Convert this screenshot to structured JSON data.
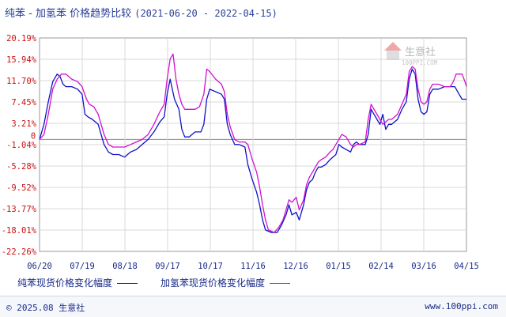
{
  "title": {
    "main": "纯苯 - 加氢苯 价格趋势比较",
    "dates": "(2021-06-20 - 2022-04-15)"
  },
  "watermark": {
    "name": "生意社",
    "url": "100PPI.COM"
  },
  "footer": {
    "copyright": "© 2025.08 生意社",
    "site": "www.100ppi.com"
  },
  "colors": {
    "series1": "#1010c8",
    "series2": "#d010d0",
    "ytick": "#cc1010",
    "xtick": "#1a2a88",
    "grid": "#d8d8d8",
    "zero": "#888888"
  },
  "chart_data": {
    "type": "line",
    "title": "纯苯 - 加氢苯 价格趋势比较",
    "xlabel": "",
    "ylabel": "",
    "ylim": [
      -22.26,
      20.19
    ],
    "yticks": [
      "20.19%",
      "15.94%",
      "11.70%",
      "7.45%",
      "3.21%",
      "-1.04%",
      "-5.28%",
      "-9.52%",
      "-13.77%",
      "-18.01%",
      "-22.26%"
    ],
    "xticks": [
      "06/20",
      "07/19",
      "08/18",
      "09/17",
      "10/17",
      "11/16",
      "12/16",
      "01/15",
      "02/14",
      "03/16",
      "04/15"
    ],
    "grid": true,
    "legend_position": "bottom",
    "series": [
      {
        "name": "纯苯现货价格变化幅度",
        "points": [
          [
            0,
            0.0
          ],
          [
            3,
            3.0
          ],
          [
            6,
            7.5
          ],
          [
            9,
            11.5
          ],
          [
            12,
            13.0
          ],
          [
            14,
            12.5
          ],
          [
            16,
            11.0
          ],
          [
            18,
            10.5
          ],
          [
            22,
            10.5
          ],
          [
            26,
            10.0
          ],
          [
            29,
            9.0
          ],
          [
            31,
            5.0
          ],
          [
            33,
            4.5
          ],
          [
            36,
            4.0
          ],
          [
            40,
            3.0
          ],
          [
            42,
            1.0
          ],
          [
            44,
            -1.0
          ],
          [
            47,
            -2.5
          ],
          [
            50,
            -3.0
          ],
          [
            54,
            -3.0
          ],
          [
            58,
            -3.5
          ],
          [
            62,
            -2.5
          ],
          [
            66,
            -2.0
          ],
          [
            70,
            -1.0
          ],
          [
            74,
            0.0
          ],
          [
            78,
            1.5
          ],
          [
            82,
            3.5
          ],
          [
            85,
            4.5
          ],
          [
            87,
            9.0
          ],
          [
            89,
            12.0
          ],
          [
            92,
            8.0
          ],
          [
            95,
            6.0
          ],
          [
            97,
            2.0
          ],
          [
            99,
            0.5
          ],
          [
            102,
            0.5
          ],
          [
            106,
            1.5
          ],
          [
            110,
            1.5
          ],
          [
            112,
            3.0
          ],
          [
            114,
            8.0
          ],
          [
            116,
            10.0
          ],
          [
            120,
            9.5
          ],
          [
            124,
            9.0
          ],
          [
            126,
            8.0
          ],
          [
            128,
            3.0
          ],
          [
            130,
            1.0
          ],
          [
            133,
            -1.0
          ],
          [
            136,
            -1.0
          ],
          [
            140,
            -1.5
          ],
          [
            142,
            -5.0
          ],
          [
            145,
            -8.0
          ],
          [
            148,
            -10.5
          ],
          [
            150,
            -13.0
          ],
          [
            152,
            -16.0
          ],
          [
            154,
            -18.0
          ],
          [
            158,
            -18.5
          ],
          [
            162,
            -18.5
          ],
          [
            165,
            -17.0
          ],
          [
            168,
            -15.0
          ],
          [
            170,
            -13.0
          ],
          [
            172,
            -15.0
          ],
          [
            175,
            -14.5
          ],
          [
            177,
            -16.0
          ],
          [
            180,
            -13.0
          ],
          [
            182,
            -10.0
          ],
          [
            184,
            -8.5
          ],
          [
            186,
            -8.0
          ],
          [
            188,
            -6.5
          ],
          [
            190,
            -5.5
          ],
          [
            192,
            -5.5
          ],
          [
            195,
            -5.0
          ],
          [
            198,
            -4.0
          ],
          [
            200,
            -3.5
          ],
          [
            202,
            -3.0
          ],
          [
            204,
            -1.0
          ],
          [
            206,
            -1.5
          ],
          [
            209,
            -2.0
          ],
          [
            212,
            -2.5
          ],
          [
            214,
            -1.0
          ],
          [
            216,
            -0.5
          ],
          [
            218,
            -1.0
          ],
          [
            222,
            -1.0
          ],
          [
            224,
            1.0
          ],
          [
            226,
            6.0
          ],
          [
            228,
            5.0
          ],
          [
            230,
            4.0
          ],
          [
            232,
            3.0
          ],
          [
            234,
            5.0
          ],
          [
            236,
            2.0
          ],
          [
            238,
            3.0
          ],
          [
            240,
            3.0
          ],
          [
            244,
            4.0
          ],
          [
            247,
            6.0
          ],
          [
            250,
            7.5
          ],
          [
            252,
            12.0
          ],
          [
            254,
            14.0
          ],
          [
            256,
            13.0
          ],
          [
            258,
            8.0
          ],
          [
            260,
            5.5
          ],
          [
            262,
            5.0
          ],
          [
            264,
            5.5
          ],
          [
            266,
            9.0
          ],
          [
            268,
            10.0
          ],
          [
            272,
            10.0
          ],
          [
            276,
            10.5
          ],
          [
            280,
            10.5
          ],
          [
            283,
            10.5
          ],
          [
            286,
            9.0
          ],
          [
            288,
            8.0
          ],
          [
            291,
            8.0
          ]
        ]
      },
      {
        "name": "加氢苯现货价格变化幅度",
        "points": [
          [
            0,
            0.0
          ],
          [
            3,
            1.0
          ],
          [
            6,
            5.0
          ],
          [
            9,
            10.0
          ],
          [
            12,
            12.0
          ],
          [
            15,
            13.0
          ],
          [
            18,
            13.0
          ],
          [
            22,
            12.0
          ],
          [
            26,
            11.5
          ],
          [
            29,
            10.5
          ],
          [
            32,
            8.0
          ],
          [
            34,
            7.0
          ],
          [
            37,
            6.5
          ],
          [
            40,
            5.0
          ],
          [
            42,
            3.0
          ],
          [
            44,
            1.0
          ],
          [
            47,
            -1.0
          ],
          [
            50,
            -1.5
          ],
          [
            54,
            -1.5
          ],
          [
            58,
            -1.5
          ],
          [
            62,
            -1.0
          ],
          [
            66,
            -0.5
          ],
          [
            70,
            0.0
          ],
          [
            74,
            1.0
          ],
          [
            78,
            3.0
          ],
          [
            82,
            5.5
          ],
          [
            85,
            7.0
          ],
          [
            87,
            12.0
          ],
          [
            89,
            16.0
          ],
          [
            91,
            17.0
          ],
          [
            93,
            12.0
          ],
          [
            95,
            9.0
          ],
          [
            97,
            7.0
          ],
          [
            99,
            6.0
          ],
          [
            102,
            6.0
          ],
          [
            106,
            6.0
          ],
          [
            109,
            6.5
          ],
          [
            112,
            9.0
          ],
          [
            114,
            14.0
          ],
          [
            116,
            13.5
          ],
          [
            120,
            12.0
          ],
          [
            124,
            11.0
          ],
          [
            126,
            9.5
          ],
          [
            128,
            5.0
          ],
          [
            130,
            2.5
          ],
          [
            133,
            0.0
          ],
          [
            136,
            -0.5
          ],
          [
            140,
            -0.5
          ],
          [
            142,
            -1.0
          ],
          [
            145,
            -4.0
          ],
          [
            148,
            -6.5
          ],
          [
            150,
            -9.5
          ],
          [
            152,
            -13.0
          ],
          [
            154,
            -16.0
          ],
          [
            156,
            -18.0
          ],
          [
            160,
            -18.5
          ],
          [
            163,
            -17.5
          ],
          [
            166,
            -16.0
          ],
          [
            168,
            -14.0
          ],
          [
            170,
            -12.0
          ],
          [
            172,
            -12.5
          ],
          [
            175,
            -11.5
          ],
          [
            177,
            -14.0
          ],
          [
            180,
            -12.0
          ],
          [
            182,
            -9.0
          ],
          [
            184,
            -7.5
          ],
          [
            186,
            -6.5
          ],
          [
            188,
            -5.5
          ],
          [
            190,
            -4.5
          ],
          [
            192,
            -4.0
          ],
          [
            195,
            -3.5
          ],
          [
            198,
            -2.5
          ],
          [
            200,
            -2.0
          ],
          [
            202,
            -1.0
          ],
          [
            204,
            0.0
          ],
          [
            206,
            1.0
          ],
          [
            209,
            0.5
          ],
          [
            212,
            -1.0
          ],
          [
            214,
            -1.5
          ],
          [
            216,
            -1.0
          ],
          [
            218,
            -1.0
          ],
          [
            222,
            -0.5
          ],
          [
            224,
            4.0
          ],
          [
            226,
            7.0
          ],
          [
            228,
            6.0
          ],
          [
            230,
            5.0
          ],
          [
            232,
            4.0
          ],
          [
            234,
            3.0
          ],
          [
            236,
            3.5
          ],
          [
            238,
            4.0
          ],
          [
            240,
            4.0
          ],
          [
            244,
            5.0
          ],
          [
            247,
            7.0
          ],
          [
            250,
            9.0
          ],
          [
            252,
            13.5
          ],
          [
            254,
            14.5
          ],
          [
            256,
            14.0
          ],
          [
            258,
            10.0
          ],
          [
            260,
            7.5
          ],
          [
            262,
            7.0
          ],
          [
            264,
            7.5
          ],
          [
            266,
            10.0
          ],
          [
            268,
            11.0
          ],
          [
            272,
            11.0
          ],
          [
            276,
            10.5
          ],
          [
            280,
            10.5
          ],
          [
            282,
            11.5
          ],
          [
            284,
            13.0
          ],
          [
            288,
            13.0
          ],
          [
            290,
            11.5
          ],
          [
            291,
            10.5
          ]
        ]
      }
    ]
  }
}
